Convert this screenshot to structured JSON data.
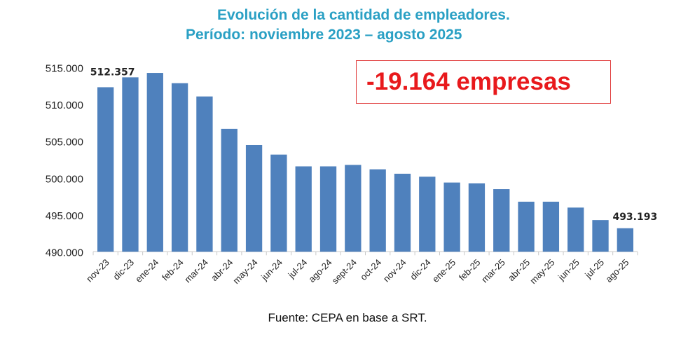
{
  "chart_data": {
    "type": "bar",
    "title": "Evolución de la cantidad de empleadores.",
    "subtitle": "Período: noviembre 2023 – agosto 2025",
    "xlabel": "",
    "ylabel": "",
    "ylim": [
      490000,
      515000
    ],
    "yticks": [
      "490.000",
      "495.000",
      "500.000",
      "505.000",
      "510.000",
      "515.000"
    ],
    "ytick_values": [
      490000,
      495000,
      500000,
      505000,
      510000,
      515000
    ],
    "grid": false,
    "categories": [
      "nov-23",
      "dic-23",
      "ene-24",
      "feb-24",
      "mar-24",
      "abr-24",
      "may-24",
      "jun-24",
      "jul-24",
      "ago-24",
      "sept-24",
      "oct-24",
      "nov-24",
      "dic-24",
      "ene-25",
      "feb-25",
      "mar-25",
      "abr-25",
      "may-25",
      "jun-25",
      "jul-25",
      "ago-25"
    ],
    "values": [
      512357,
      513700,
      514300,
      512900,
      511100,
      506700,
      504500,
      503200,
      501600,
      501600,
      501800,
      501200,
      500600,
      500200,
      499400,
      499300,
      498500,
      496800,
      496800,
      496000,
      494300,
      493193
    ],
    "data_labels": [
      {
        "index": 0,
        "text": "512.357"
      },
      {
        "index": 21,
        "text": "493.193"
      }
    ],
    "bar_color": "#4f81bd",
    "annotation": "-19.164 empresas",
    "annotation_color": "#e8191c",
    "source": "Fuente: CEPA en base a SRT."
  }
}
